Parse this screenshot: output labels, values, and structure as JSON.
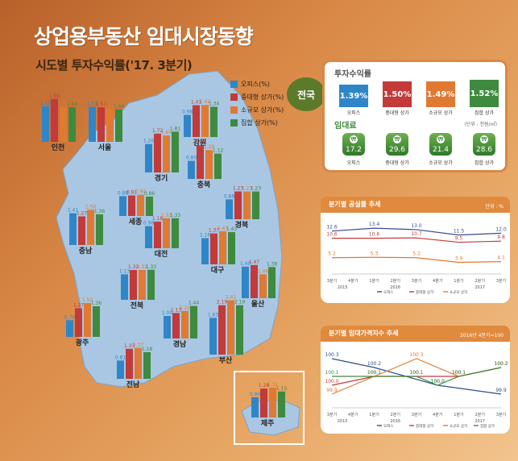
{
  "header": {
    "title": "상업용부동산 임대시장동향",
    "subtitle": "시도별 투자수익률('17. 3분기)"
  },
  "legend": [
    {
      "label": "오피스(%)",
      "color": "#2e86c8"
    },
    {
      "label": "중대형 상가(%)",
      "color": "#c23a3a"
    },
    {
      "label": "소규모 상가(%)",
      "color": "#e07a32"
    },
    {
      "label": "집합 상가(%)",
      "color": "#3e8a3e"
    }
  ],
  "national": {
    "badge": "전국",
    "yield_title": "투자수익률",
    "yields": [
      {
        "label": "오피스",
        "value": "1.39%",
        "color": "#2e86c8"
      },
      {
        "label": "중대형 상가",
        "value": "1.50%",
        "color": "#c23a3a"
      },
      {
        "label": "소규모 상가",
        "value": "1.49%",
        "color": "#e07a32"
      },
      {
        "label": "집합 상가",
        "value": "1.52%",
        "color": "#3e8a3e"
      }
    ],
    "rent_title": "임대료",
    "rent_unit": "(단위 : 천원/㎡)",
    "rent_icon": "won-coin-icon",
    "rents": [
      {
        "label": "오피스",
        "value": "17.2"
      },
      {
        "label": "중대형 상가",
        "value": "29.6"
      },
      {
        "label": "소규모 상가",
        "value": "21.4"
      },
      {
        "label": "집합 상가",
        "value": "28.6"
      }
    ]
  },
  "chart_data": [
    {
      "type": "bar",
      "series_names": [
        "오피스(%)",
        "중대형 상가(%)",
        "소규모 상가(%)",
        "집합 상가(%)"
      ],
      "regions": [
        {
          "name": "인천",
          "values": [
            1.58,
            1.9,
            1.55,
            1.54
          ],
          "labels": [
            "1.58",
            "1.90",
            "1.55",
            "1.54"
          ]
        },
        {
          "name": "서울",
          "values": [
            1.55,
            1.53,
            1.48,
            1.44
          ],
          "labels": [
            "1.55",
            "1.53",
            "1.48",
            "1.44"
          ]
        },
        {
          "name": "강원",
          "values": [
            0.98,
            1.41,
            1.42,
            1.34
          ],
          "labels": [
            "0.98",
            "1.41",
            "1.42",
            "1.34"
          ]
        },
        {
          "name": "경기",
          "values": [
            1.26,
            1.72,
            1.64,
            1.81
          ],
          "labels": [
            "1.26",
            "1.72",
            "1.64",
            "1.81"
          ]
        },
        {
          "name": "충북",
          "values": [
            0.8,
            1.49,
            1.28,
            1.12
          ],
          "labels": [
            "0.80",
            "1.49",
            "1.28",
            "1.12"
          ]
        },
        {
          "name": "세종",
          "values": [
            0.88,
            0.91,
            0.94,
            0.86
          ],
          "labels": [
            "0.88",
            "0.91",
            "0.94",
            "0.86"
          ]
        },
        {
          "name": "경북",
          "values": [
            0.88,
            1.23,
            1.23,
            1.23
          ],
          "labels": [
            "0.88",
            "1.23",
            "1.23",
            "1.23"
          ]
        },
        {
          "name": "충남",
          "values": [
            1.41,
            1.27,
            1.56,
            1.36
          ],
          "labels": [
            "1.41",
            "1.27",
            "1.56",
            "1.36"
          ]
        },
        {
          "name": "대전",
          "values": [
            0.98,
            1.18,
            1.33,
            1.33
          ],
          "labels": [
            "0.98",
            "1.18",
            "1.33",
            "1.33"
          ]
        },
        {
          "name": "대구",
          "values": [
            1.16,
            1.37,
            1.47,
            1.43
          ],
          "labels": [
            "1.16",
            "1.37",
            "1.47",
            "1.43"
          ]
        },
        {
          "name": "전북",
          "values": [
            1.13,
            1.32,
            1.32,
            1.33
          ],
          "labels": [
            "1.13",
            "1.32",
            "1.32",
            "1.33"
          ]
        },
        {
          "name": "울산",
          "values": [
            1.4,
            1.47,
            1.06,
            1.38
          ],
          "labels": [
            "1.40",
            "1.47",
            "1.06",
            "1.38"
          ]
        },
        {
          "name": "경남",
          "values": [
            1.0,
            1.13,
            1.22,
            1.44
          ],
          "labels": [
            "1.00",
            "1.13",
            "1.22",
            "1.44"
          ]
        },
        {
          "name": "부산",
          "values": [
            1.63,
            2.19,
            2.41,
            2.19
          ],
          "labels": [
            "1.63",
            "2.19",
            "2.41",
            "2.19"
          ]
        },
        {
          "name": "광주",
          "values": [
            0.74,
            1.27,
            1.5,
            1.36
          ],
          "labels": [
            "0.74",
            "1.27",
            "1.50",
            "1.36"
          ]
        },
        {
          "name": "전남",
          "values": [
            0.81,
            1.33,
            1.37,
            1.18
          ],
          "labels": [
            "0.81",
            "1.33",
            "1.37",
            "1.18"
          ]
        },
        {
          "name": "제주",
          "values": [
            0.9,
            1.28,
            1.32,
            1.15
          ],
          "labels": [
            "0.90",
            "1.28",
            "1.32",
            "1.15"
          ]
        }
      ]
    },
    {
      "type": "line",
      "title": "분기별 공실률 추세",
      "unit": "단위 : %",
      "x": [
        "3분기",
        "4분기",
        "1분기",
        "2분기",
        "3분기",
        "4분기",
        "1분기",
        "2분기",
        "3분기"
      ],
      "year_labels": [
        "2015",
        "2016",
        "2017"
      ],
      "series": [
        {
          "name": "오피스",
          "color": "#3a4a8a",
          "values": [
            12.6,
            null,
            13.4,
            null,
            13.0,
            null,
            11.5,
            null,
            12.0
          ]
        },
        {
          "name": "중대형 상가",
          "color": "#c23a3a",
          "values": [
            10.6,
            null,
            10.6,
            null,
            10.7,
            null,
            9.5,
            null,
            9.8
          ]
        },
        {
          "name": "소규모 상가",
          "color": "#e07a32",
          "values": [
            5.2,
            null,
            5.3,
            null,
            5.2,
            null,
            3.9,
            null,
            4.1
          ]
        }
      ]
    },
    {
      "type": "line",
      "title": "분기별 임대가격지수 추세",
      "unit": "2016년 4분기=100",
      "x": [
        "3분기",
        "4분기",
        "1분기",
        "2분기",
        "3분기",
        "4분기",
        "1분기",
        "2분기",
        "3분기"
      ],
      "year_labels": [
        "2015",
        "2016",
        "2017"
      ],
      "series": [
        {
          "name": "오피스",
          "color": "#2b4f8a",
          "values": [
            100.3,
            null,
            100.2,
            null,
            null,
            100.0,
            null,
            null,
            99.9
          ]
        },
        {
          "name": "중대형 상가",
          "color": "#c23a3a",
          "values": [
            100.0,
            null,
            100.1,
            null,
            100.1,
            null,
            100.1,
            null,
            100.2
          ]
        },
        {
          "name": "소규모 상가",
          "color": "#e07a32",
          "values": [
            99.9,
            null,
            100.1,
            null,
            100.3,
            null,
            100.1,
            null,
            100.2
          ]
        },
        {
          "name": "집합 상가",
          "color": "#3e8a3e",
          "values": [
            100.1,
            null,
            100.1,
            null,
            100.1,
            100.0,
            100.1,
            null,
            100.2
          ]
        }
      ],
      "point_labels": [
        "100.3",
        "100.2",
        "100.0",
        "99.9",
        "100.1",
        "100.0",
        "99.9",
        "100.1",
        "100.1",
        "100.1",
        "100.3",
        "100.1",
        "100.1",
        "100.1",
        "100.2",
        "100.2",
        "100.2",
        "100.0"
      ]
    }
  ]
}
